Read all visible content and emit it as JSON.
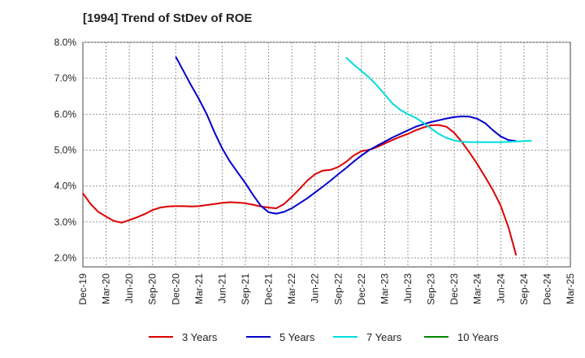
{
  "chart_data": {
    "type": "line",
    "title": "[1994]  Trend of StDev of ROE",
    "xlabel": "",
    "ylabel": "",
    "ylim": [
      1.75,
      8.0
    ],
    "y_ticks": [
      "2.0%",
      "3.0%",
      "4.0%",
      "5.0%",
      "6.0%",
      "7.0%",
      "8.0%"
    ],
    "y_tick_values": [
      2.0,
      3.0,
      4.0,
      5.0,
      6.0,
      7.0,
      8.0
    ],
    "x_ticks": [
      "Dec-19",
      "Mar-20",
      "Jun-20",
      "Sep-20",
      "Dec-20",
      "Mar-21",
      "Jun-21",
      "Sep-21",
      "Dec-21",
      "Mar-22",
      "Jun-22",
      "Sep-22",
      "Dec-22",
      "Mar-23",
      "Jun-23",
      "Sep-23",
      "Dec-23",
      "Mar-24",
      "Jun-24",
      "Sep-24",
      "Dec-24",
      "Mar-25"
    ],
    "grid": true,
    "legend_position": "bottom",
    "series": [
      {
        "name": "3 Years",
        "color": "#dd0000",
        "start_index": 0,
        "values": [
          3.8,
          3.5,
          3.28,
          3.15,
          3.03,
          2.98,
          3.05,
          3.13,
          3.22,
          3.33,
          3.4,
          3.43,
          3.44,
          3.44,
          3.43,
          3.44,
          3.47,
          3.5,
          3.53,
          3.55,
          3.54,
          3.52,
          3.48,
          3.43,
          3.4,
          3.38,
          3.5,
          3.7,
          3.92,
          4.15,
          4.33,
          4.43,
          4.45,
          4.53,
          4.67,
          4.85,
          4.97,
          5.01,
          5.08,
          5.18,
          5.28,
          5.37,
          5.45,
          5.55,
          5.63,
          5.69,
          5.7,
          5.65,
          5.48,
          5.22,
          4.92,
          4.6,
          4.25,
          3.88,
          3.45,
          2.85,
          2.07
        ]
      },
      {
        "name": "5 Years",
        "color": "#0000cc",
        "start_index": 12,
        "values": [
          7.6,
          7.2,
          6.8,
          6.42,
          6.0,
          5.5,
          5.05,
          4.68,
          4.38,
          4.08,
          3.75,
          3.45,
          3.27,
          3.23,
          3.28,
          3.38,
          3.52,
          3.66,
          3.82,
          3.98,
          4.15,
          4.33,
          4.5,
          4.68,
          4.85,
          5.0,
          5.12,
          5.23,
          5.35,
          5.45,
          5.55,
          5.65,
          5.72,
          5.78,
          5.83,
          5.88,
          5.92,
          5.94,
          5.93,
          5.87,
          5.75,
          5.55,
          5.38,
          5.28,
          5.25
        ]
      },
      {
        "name": "7 Years",
        "color": "#00dddd",
        "start_index": 34,
        "values": [
          7.58,
          7.38,
          7.2,
          7.02,
          6.8,
          6.55,
          6.3,
          6.12,
          6.0,
          5.9,
          5.76,
          5.6,
          5.45,
          5.34,
          5.27,
          5.23,
          5.22,
          5.22,
          5.22,
          5.22,
          5.22,
          5.23,
          5.24,
          5.25,
          5.26
        ]
      },
      {
        "name": "10 Years",
        "color": "#008800",
        "start_index": 0,
        "values": []
      }
    ]
  }
}
